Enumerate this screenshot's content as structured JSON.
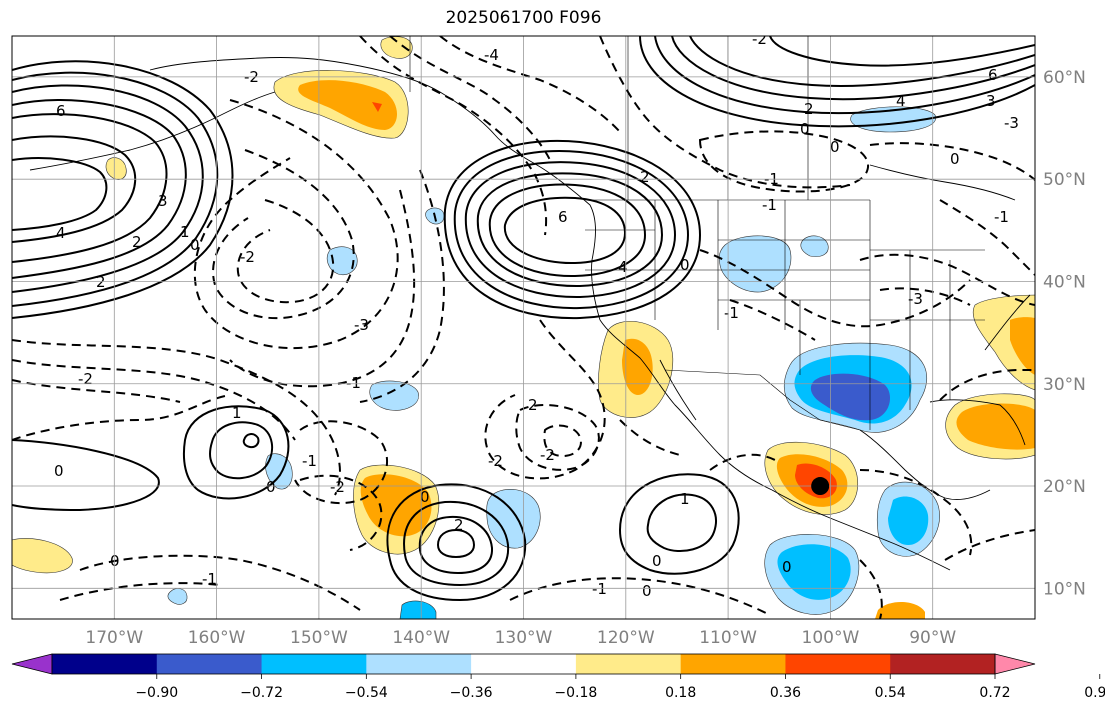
{
  "title": "2025061700 F096",
  "map": {
    "projection": "PlateCarree",
    "lon_range": [
      -180,
      -80
    ],
    "lat_range": [
      7,
      64
    ],
    "lon_labels": [
      "170°W",
      "160°W",
      "150°W",
      "140°W",
      "130°W",
      "120°W",
      "110°W",
      "100°W",
      "90°W"
    ],
    "lat_labels": [
      "60°N",
      "50°N",
      "40°N",
      "30°N",
      "20°N",
      "10°N"
    ],
    "gridlines": true,
    "marker": {
      "lon": -101,
      "lat": 20,
      "icon": "black-dot-icon"
    }
  },
  "contours": {
    "style": "solid positive, dashed negative",
    "labels": [
      {
        "text": "6"
      },
      {
        "text": "4"
      },
      {
        "text": "3"
      },
      {
        "text": "2"
      },
      {
        "text": "2"
      },
      {
        "text": "1"
      },
      {
        "text": "0"
      },
      {
        "text": "-2"
      },
      {
        "text": "-3"
      },
      {
        "text": "-2"
      },
      {
        "text": "-1"
      },
      {
        "text": "-2"
      },
      {
        "text": "6"
      },
      {
        "text": "2"
      },
      {
        "text": "4"
      },
      {
        "text": "0"
      },
      {
        "text": "-1"
      },
      {
        "text": "-4"
      },
      {
        "text": "-2"
      },
      {
        "text": "6"
      },
      {
        "text": "3"
      },
      {
        "text": "4"
      },
      {
        "text": "2"
      },
      {
        "text": "0"
      },
      {
        "text": "-1"
      },
      {
        "text": "0"
      },
      {
        "text": "-1"
      },
      {
        "text": "-3"
      },
      {
        "text": "-1"
      },
      {
        "text": "1"
      },
      {
        "text": "0"
      },
      {
        "text": "-1"
      },
      {
        "text": "0"
      },
      {
        "text": "-2"
      },
      {
        "text": "2"
      },
      {
        "text": "0"
      },
      {
        "text": "1"
      },
      {
        "text": "0"
      },
      {
        "text": "-1"
      },
      {
        "text": "0"
      },
      {
        "text": "0"
      },
      {
        "text": "-1"
      },
      {
        "text": "0"
      },
      {
        "text": "-2"
      },
      {
        "text": "-2"
      },
      {
        "text": "-3"
      },
      {
        "text": "2"
      },
      {
        "text": "0"
      }
    ]
  },
  "colorbar": {
    "colors": [
      "#9932cc",
      "#00008b",
      "#3a5bcc",
      "#00bfff",
      "#aee0ff",
      "#ffffff",
      "#ffeb8a",
      "#ffa500",
      "#ff4500",
      "#b22222",
      "#ff88aa"
    ],
    "tick_labels": [
      "−0.90",
      "−0.72",
      "−0.54",
      "−0.36",
      "−0.18",
      "0.18",
      "0.36",
      "0.54",
      "0.72",
      "0.90"
    ],
    "extend": "both"
  }
}
